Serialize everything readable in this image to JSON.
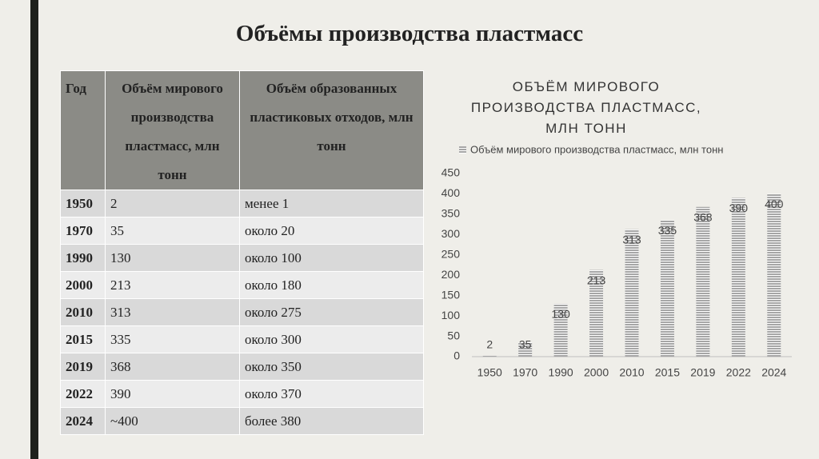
{
  "title": "Объёмы производства пластмасс",
  "table": {
    "header": [
      "Год",
      "Объём мирового производства пластмасс, млн тонн",
      "Объём образованных пластиковых отходов, млн тонн"
    ],
    "rows": [
      [
        "1950",
        "2",
        "менее 1"
      ],
      [
        "1970",
        "35",
        "около 20"
      ],
      [
        "1990",
        "130",
        "около 100"
      ],
      [
        "2000",
        "213",
        "около 180"
      ],
      [
        "2010",
        "313",
        "около 275"
      ],
      [
        "2015",
        "335",
        "около 300"
      ],
      [
        "2019",
        "368",
        "около 350"
      ],
      [
        "2022",
        "390",
        "около 370"
      ],
      [
        "2024",
        "~400",
        "более 380"
      ]
    ]
  },
  "chart_data": {
    "type": "bar",
    "title": "ОБЪЁМ МИРОВОГО ПРОИЗВОДСТВА ПЛАСТМАСС, МЛН ТОНН",
    "categories": [
      "1950",
      "1970",
      "1990",
      "2000",
      "2010",
      "2015",
      "2019",
      "2022",
      "2024"
    ],
    "series": [
      {
        "name": "Объём мирового производства пластмасс, млн тонн",
        "color": "#a6a6a6",
        "values": [
          2,
          35,
          130,
          213,
          313,
          335,
          368,
          390,
          400
        ]
      }
    ],
    "ylim": [
      0,
      450
    ],
    "yticks": [
      0,
      50,
      100,
      150,
      200,
      250,
      300,
      350,
      400,
      450
    ],
    "legend": "top"
  }
}
